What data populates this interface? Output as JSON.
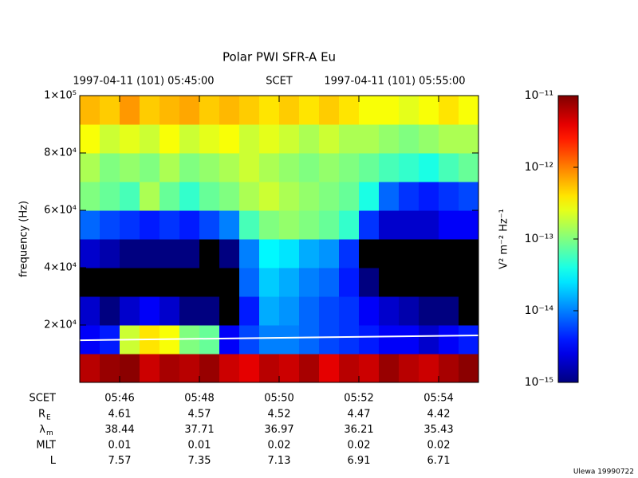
{
  "chart_data": {
    "type": "spectrogram",
    "title": "Polar PWI SFR-A Eu",
    "top_labels": [
      "1997-04-11 (101) 05:45:00",
      "SCET",
      "1997-04-11 (101) 05:55:00"
    ],
    "y_label": "frequency (Hz)",
    "ylim": [
      0,
      100000
    ],
    "yticks": [
      {
        "value": 20000,
        "label": "2×10⁴"
      },
      {
        "value": 40000,
        "label": "4×10⁴"
      },
      {
        "value": 60000,
        "label": "6×10⁴"
      },
      {
        "value": 80000,
        "label": "8×10⁴"
      },
      {
        "value": 100000,
        "label": "1×10⁵"
      }
    ],
    "xlim": [
      "05:45:00",
      "05:55:00"
    ],
    "xticks": [
      "05:46",
      "05:48",
      "05:50",
      "05:52",
      "05:54"
    ],
    "time_bins": [
      "05:45:00",
      "05:45:30",
      "05:46:00",
      "05:46:30",
      "05:47:00",
      "05:47:30",
      "05:48:00",
      "05:48:30",
      "05:49:00",
      "05:49:30",
      "05:50:00",
      "05:50:30",
      "05:51:00",
      "05:51:30",
      "05:52:00",
      "05:52:30",
      "05:53:00",
      "05:53:30",
      "05:54:00",
      "05:54:30",
      "05:55:00"
    ],
    "freq_bins": [
      0,
      10000,
      20000,
      30000,
      40000,
      50000,
      60000,
      70000,
      80000,
      90000,
      100000
    ],
    "z": [
      [
        6e-12,
        8e-12,
        9e-12,
        5e-12,
        7e-12,
        6e-12,
        8e-12,
        5e-12,
        4e-12,
        6e-12,
        5e-12,
        7e-12,
        4e-12,
        6e-12,
        5e-12,
        8e-12,
        6e-12,
        5e-12,
        7e-12,
        9e-12
      ],
      [
        3e-15,
        4e-15,
        2e-13,
        4e-13,
        3e-13,
        1e-13,
        8e-14,
        3e-15,
        6e-15,
        1e-14,
        1e-14,
        8e-15,
        6e-15,
        5e-15,
        4e-15,
        3e-15,
        3e-15,
        2e-15,
        3e-15,
        4e-15
      ],
      [
        2e-15,
        1e-15,
        2e-15,
        3e-15,
        2e-15,
        1e-15,
        1e-15,
        8e-16,
        4e-15,
        1.5e-14,
        1.2e-14,
        8e-15,
        6e-15,
        5e-15,
        3e-15,
        2e-15,
        1.5e-15,
        1e-15,
        1e-15,
        8e-16
      ],
      [
        5e-16,
        6e-16,
        5e-16,
        6e-16,
        5e-16,
        5e-16,
        6e-16,
        5e-16,
        8e-15,
        2e-14,
        1.5e-14,
        1e-14,
        8e-15,
        4e-15,
        1e-15,
        5e-16,
        5e-16,
        5e-16,
        5e-16,
        5e-16
      ],
      [
        2e-15,
        1.5e-15,
        1e-15,
        1e-15,
        1e-15,
        1e-15,
        8e-16,
        1e-15,
        1e-14,
        3e-14,
        2.5e-14,
        1.5e-14,
        1.2e-14,
        5e-15,
        8e-16,
        5e-16,
        5e-16,
        5e-16,
        5e-16,
        5e-16
      ],
      [
        8e-15,
        6e-15,
        5e-15,
        4e-15,
        5e-15,
        4e-15,
        6e-15,
        1e-14,
        6e-14,
        1e-13,
        1.2e-13,
        1e-13,
        8e-14,
        5e-14,
        5e-15,
        2e-15,
        2e-15,
        2e-15,
        3e-15,
        3e-15
      ],
      [
        1e-13,
        8e-14,
        6e-14,
        1.5e-13,
        8e-14,
        5e-14,
        8e-14,
        1e-13,
        1.5e-13,
        2e-13,
        1.5e-13,
        1.2e-13,
        1e-13,
        8e-14,
        4e-14,
        8e-15,
        5e-15,
        4e-15,
        5e-15,
        6e-15
      ],
      [
        1.5e-13,
        1e-13,
        1.2e-13,
        1e-13,
        1.5e-13,
        1e-13,
        1.2e-13,
        1.5e-13,
        2e-13,
        1.5e-13,
        1.2e-13,
        1e-13,
        1.2e-13,
        1e-13,
        8e-14,
        6e-14,
        5e-14,
        4e-14,
        6e-14,
        8e-14
      ],
      [
        3e-13,
        2e-13,
        2.5e-13,
        2e-13,
        3e-13,
        2e-13,
        2.5e-13,
        3e-13,
        2e-13,
        2.5e-13,
        2e-13,
        1.5e-13,
        2e-13,
        1.5e-13,
        1.5e-13,
        1.2e-13,
        1e-13,
        1.2e-13,
        1.5e-13,
        1.5e-13
      ],
      [
        6e-13,
        5e-13,
        8e-13,
        5e-13,
        6e-13,
        7e-13,
        5e-13,
        6e-13,
        5e-13,
        4e-13,
        5e-13,
        4e-13,
        5e-13,
        4e-13,
        3e-13,
        3e-13,
        2.5e-13,
        3e-13,
        4e-13,
        3e-13
      ]
    ],
    "line": {
      "x": [
        "05:45:00",
        "05:55:00"
      ],
      "values": [
        14700,
        16400
      ],
      "color": "#ffffff"
    },
    "zlim": [
      1e-15,
      1e-11
    ],
    "zlog": true,
    "zticks": [
      {
        "value": 1e-15,
        "label": "10⁻¹⁵"
      },
      {
        "value": 1e-14,
        "label": "10⁻¹⁴"
      },
      {
        "value": 1e-13,
        "label": "10⁻¹³"
      },
      {
        "value": 1e-12,
        "label": "10⁻¹²"
      },
      {
        "value": 1e-11,
        "label": "10⁻¹¹"
      }
    ],
    "z_label": "V² m⁻² Hz⁻¹",
    "ephemeris": [
      {
        "label": "R",
        "sub": "E",
        "values": [
          4.61,
          4.57,
          4.52,
          4.47,
          4.42
        ]
      },
      {
        "label": "λ",
        "sub": "m",
        "values": [
          38.44,
          37.71,
          36.97,
          36.21,
          35.43
        ]
      },
      {
        "label": "MLT",
        "values": [
          0.01,
          0.01,
          0.02,
          0.02,
          0.02
        ]
      },
      {
        "label": "L",
        "values": [
          7.57,
          7.35,
          7.13,
          6.91,
          6.71
        ]
      }
    ],
    "x_row_label": "SCET",
    "footer": "Ulewa 19990722"
  }
}
